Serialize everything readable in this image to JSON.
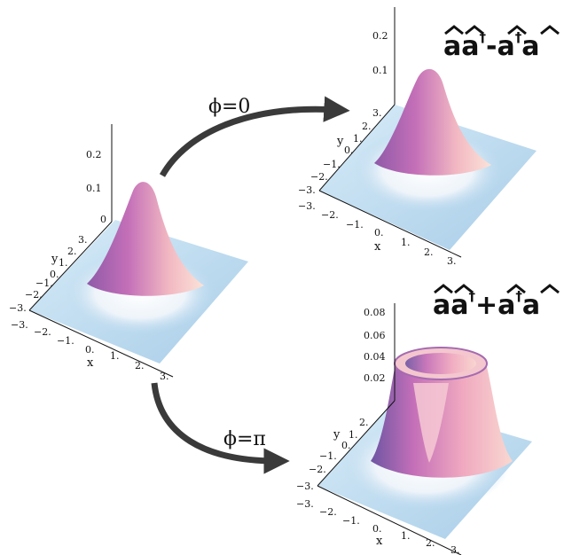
{
  "panels": {
    "input": {
      "z_ticks": [
        "0.2",
        "0.1",
        "0"
      ],
      "y_ticks": [
        "3.",
        "2.",
        "1.",
        "0.",
        "−1.",
        "−2.",
        "−3."
      ],
      "x_ticks": [
        "−3.",
        "−2.",
        "−1.",
        "0.",
        "1.",
        "2.",
        "3."
      ],
      "y_label": "y",
      "x_label": "x"
    },
    "output_top": {
      "operator": {
        "part1": "aa",
        "dag1": "†",
        "sep": "-",
        "part2": "a",
        "dag2": "†",
        "part3": "a"
      },
      "z_ticks": [
        "0.2",
        "0.1"
      ],
      "y_ticks": [
        "3.",
        "2.",
        "1.",
        "0.",
        "−1.",
        "−2.",
        "−3."
      ],
      "x_ticks": [
        "−3.",
        "−2.",
        "−1.",
        "0.",
        "1.",
        "2.",
        "3."
      ],
      "y_label": "y",
      "x_label": "x"
    },
    "output_bottom": {
      "operator": {
        "part1": "aa",
        "dag1": "†",
        "sep": "+",
        "part2": "a",
        "dag2": "†",
        "part3": "a"
      },
      "z_ticks": [
        "0.08",
        "0.06",
        "0.04",
        "0.02"
      ],
      "y_ticks": [
        "2.",
        "1.",
        "0.",
        "−1.",
        "−2.",
        "−3."
      ],
      "x_ticks": [
        "−3.",
        "−2.",
        "−1.",
        "0.",
        "1.",
        "2.",
        "3."
      ],
      "y_label": "y",
      "x_label": "x"
    }
  },
  "arrows": {
    "upper": {
      "label": "ϕ=0"
    },
    "lower": {
      "label": "ϕ=π"
    }
  },
  "colors": {
    "plane": "#bcd9ee",
    "peak_magenta": "#c46fb8",
    "peak_light": "#f3cfd9",
    "arrow": "#3a3a3a"
  }
}
